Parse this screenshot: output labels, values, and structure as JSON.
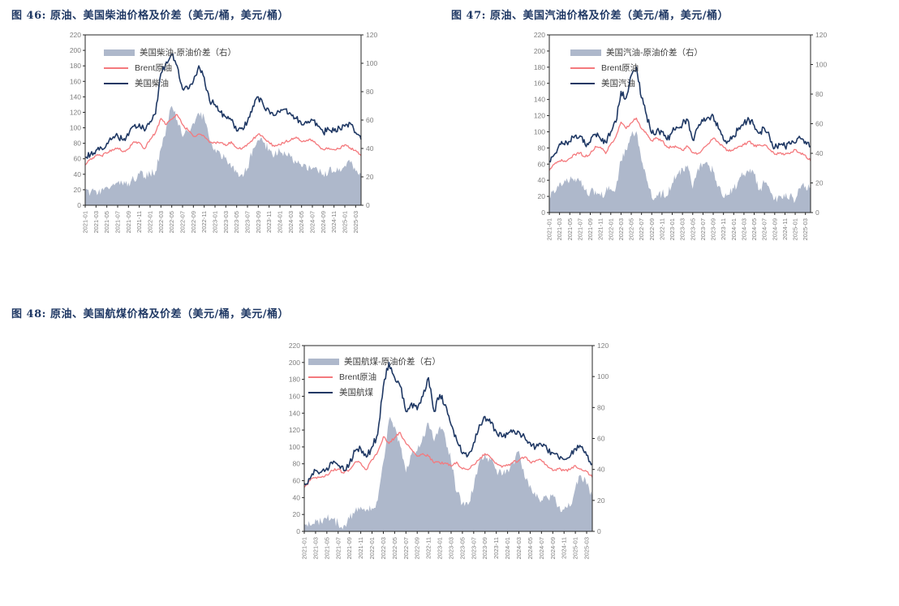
{
  "page": {
    "background": "#ffffff"
  },
  "colors": {
    "title": "#1f3864",
    "navy_line": "#1f3864",
    "pink_line": "#f4797d",
    "spread_fill": "#aeb8cb",
    "axis_text": "#7f7f7f",
    "plot_border": "#262626",
    "legend_text": "#404040"
  },
  "chart_data": [
    {
      "type": "line+area",
      "title": "图 46:  原油、美国柴油价格及价差（美元/桶，美元/桶）",
      "legend": [
        "美国柴油-原油价差（右）",
        "Brent原油",
        "美国柴油"
      ],
      "left_axis": {
        "min": 0,
        "max": 220,
        "step": 20,
        "ticks": [
          0,
          20,
          40,
          60,
          80,
          100,
          120,
          140,
          160,
          180,
          200,
          220
        ]
      },
      "right_axis": {
        "min": 0,
        "max": 120,
        "step": 20,
        "ticks": [
          0,
          20,
          40,
          60,
          80,
          100,
          120
        ]
      },
      "x_tick_labels": [
        "2021-01",
        "2021-03",
        "2021-05",
        "2021-07",
        "2021-09",
        "2021-11",
        "2022-01",
        "2022-03",
        "2022-05",
        "2022-07",
        "2022-09",
        "2022-11",
        "2023-01",
        "2023-03",
        "2023-05",
        "2023-07",
        "2023-09",
        "2023-11",
        "2024-01",
        "2024-03",
        "2024-05",
        "2024-07",
        "2024-09",
        "2024-11",
        "2025-01",
        "2025-03"
      ],
      "months": [
        "2021-01",
        "2021-02",
        "2021-03",
        "2021-04",
        "2021-05",
        "2021-06",
        "2021-07",
        "2021-08",
        "2021-09",
        "2021-10",
        "2021-11",
        "2021-12",
        "2022-01",
        "2022-02",
        "2022-03",
        "2022-04",
        "2022-05",
        "2022-06",
        "2022-07",
        "2022-08",
        "2022-09",
        "2022-10",
        "2022-11",
        "2022-12",
        "2023-01",
        "2023-02",
        "2023-03",
        "2023-04",
        "2023-05",
        "2023-06",
        "2023-07",
        "2023-08",
        "2023-09",
        "2023-10",
        "2023-11",
        "2023-12",
        "2024-01",
        "2024-02",
        "2024-03",
        "2024-04",
        "2024-05",
        "2024-06",
        "2024-07",
        "2024-08",
        "2024-09",
        "2024-10",
        "2024-11",
        "2024-12",
        "2025-01",
        "2025-02",
        "2025-03",
        "2025-04"
      ],
      "series": [
        {
          "name": "美国柴油-原油价差（右）",
          "axis": "right",
          "style": "area",
          "values": [
            10,
            9,
            10,
            11,
            13,
            14,
            16,
            14,
            16,
            18,
            22,
            20,
            22,
            24,
            40,
            55,
            70,
            60,
            48,
            52,
            58,
            65,
            62,
            46,
            40,
            36,
            34,
            26,
            23,
            22,
            26,
            40,
            46,
            44,
            40,
            35,
            38,
            36,
            34,
            30,
            27,
            25,
            26,
            24,
            22,
            24,
            24,
            26,
            28,
            30,
            24,
            22
          ]
        },
        {
          "name": "Brent原油",
          "axis": "left",
          "style": "line-pink",
          "values": [
            52,
            60,
            64,
            64,
            67,
            72,
            74,
            69,
            73,
            82,
            81,
            73,
            85,
            94,
            112,
            104,
            111,
            117,
            104,
            97,
            89,
            92,
            89,
            81,
            81,
            81,
            77,
            82,
            74,
            73,
            79,
            85,
            92,
            87,
            81,
            76,
            78,
            82,
            84,
            88,
            82,
            84,
            84,
            78,
            72,
            74,
            72,
            73,
            78,
            74,
            71,
            64
          ]
        },
        {
          "name": "美国柴油",
          "axis": "left",
          "style": "line-navy",
          "values": [
            62,
            66,
            71,
            74,
            80,
            86,
            90,
            84,
            90,
            102,
            105,
            96,
            108,
            118,
            170,
            185,
            195,
            180,
            150,
            150,
            160,
            180,
            165,
            135,
            130,
            120,
            114,
            110,
            96,
            100,
            108,
            128,
            140,
            128,
            122,
            116,
            120,
            124,
            118,
            112,
            104,
            106,
            110,
            102,
            94,
            98,
            96,
            100,
            102,
            106,
            94,
            85
          ]
        }
      ]
    },
    {
      "type": "line+area",
      "title": "图 47:  原油、美国汽油价格及价差（美元/桶，美元/桶）",
      "legend": [
        "美国汽油-原油价差（右）",
        "Brent原油",
        "美国汽油"
      ],
      "left_axis": {
        "min": 0,
        "max": 220,
        "step": 20,
        "ticks": [
          0,
          20,
          40,
          60,
          80,
          100,
          120,
          140,
          160,
          180,
          200,
          220
        ]
      },
      "right_axis": {
        "min": 0,
        "max": 120,
        "step": 20,
        "ticks": [
          0,
          20,
          40,
          60,
          80,
          100,
          120
        ]
      },
      "x_tick_labels": [
        "2021-01",
        "2021-03",
        "2021-05",
        "2021-07",
        "2021-09",
        "2021-11",
        "2022-01",
        "2022-03",
        "2022-05",
        "2022-07",
        "2022-09",
        "2022-11",
        "2023-01",
        "2023-03",
        "2023-05",
        "2023-07",
        "2023-09",
        "2023-11",
        "2024-01",
        "2024-03",
        "2024-05",
        "2024-07",
        "2024-09",
        "2024-11",
        "2025-01",
        "2025-03"
      ],
      "months": [
        "2021-01",
        "2021-02",
        "2021-03",
        "2021-04",
        "2021-05",
        "2021-06",
        "2021-07",
        "2021-08",
        "2021-09",
        "2021-10",
        "2021-11",
        "2021-12",
        "2022-01",
        "2022-02",
        "2022-03",
        "2022-04",
        "2022-05",
        "2022-06",
        "2022-07",
        "2022-08",
        "2022-09",
        "2022-10",
        "2022-11",
        "2022-12",
        "2023-01",
        "2023-02",
        "2023-03",
        "2023-04",
        "2023-05",
        "2023-06",
        "2023-07",
        "2023-08",
        "2023-09",
        "2023-10",
        "2023-11",
        "2023-12",
        "2024-01",
        "2024-02",
        "2024-03",
        "2024-04",
        "2024-05",
        "2024-06",
        "2024-07",
        "2024-08",
        "2024-09",
        "2024-10",
        "2024-11",
        "2024-12",
        "2025-01",
        "2025-02",
        "2025-03",
        "2025-04"
      ],
      "series": [
        {
          "name": "美国汽油-原油价差（右）",
          "axis": "right",
          "style": "area",
          "values": [
            11,
            13,
            20,
            22,
            22,
            23,
            21,
            15,
            14,
            15,
            11,
            14,
            16,
            17,
            35,
            42,
            52,
            55,
            35,
            22,
            10,
            12,
            13,
            11,
            20,
            26,
            30,
            32,
            16,
            30,
            33,
            32,
            28,
            18,
            10,
            12,
            16,
            22,
            26,
            27,
            26,
            15,
            20,
            16,
            9,
            11,
            10,
            12,
            8,
            16,
            18,
            17
          ]
        },
        {
          "name": "Brent原油",
          "axis": "left",
          "style": "line-pink",
          "values": [
            52,
            60,
            64,
            64,
            67,
            72,
            74,
            69,
            73,
            82,
            81,
            73,
            85,
            94,
            112,
            104,
            111,
            117,
            104,
            97,
            89,
            92,
            89,
            81,
            81,
            81,
            77,
            82,
            74,
            73,
            79,
            85,
            92,
            87,
            81,
            76,
            78,
            82,
            84,
            88,
            82,
            84,
            84,
            78,
            72,
            74,
            72,
            73,
            78,
            74,
            71,
            64
          ]
        },
        {
          "name": "美国汽油",
          "axis": "left",
          "style": "line-navy",
          "values": [
            63,
            72,
            85,
            84,
            88,
            95,
            95,
            84,
            87,
            97,
            91,
            87,
            100,
            112,
            150,
            142,
            170,
            180,
            142,
            120,
            98,
            102,
            100,
            90,
            100,
            105,
            110,
            115,
            90,
            105,
            113,
            118,
            120,
            104,
            90,
            88,
            95,
            105,
            111,
            115,
            108,
            98,
            104,
            94,
            80,
            84,
            82,
            85,
            86,
            92,
            88,
            82
          ]
        }
      ]
    },
    {
      "type": "line+area",
      "title": "图 48:  原油、美国航煤价格及价差（美元/桶，美元/桶）",
      "legend": [
        "美国航煤-原油价差（右）",
        "Brent原油",
        "美国航煤"
      ],
      "left_axis": {
        "min": 0,
        "max": 220,
        "step": 20,
        "ticks": [
          0,
          20,
          40,
          60,
          80,
          100,
          120,
          140,
          160,
          180,
          200,
          220
        ]
      },
      "right_axis": {
        "min": 0,
        "max": 120,
        "step": 20,
        "ticks": [
          0,
          20,
          40,
          60,
          80,
          100,
          120
        ]
      },
      "x_tick_labels": [
        "2021-01",
        "2021-03",
        "2021-05",
        "2021-07",
        "2021-09",
        "2021-11",
        "2022-01",
        "2022-03",
        "2022-05",
        "2022-07",
        "2022-09",
        "2022-11",
        "2023-01",
        "2023-03",
        "2023-05",
        "2023-07",
        "2023-09",
        "2023-11",
        "2024-01",
        "2024-03",
        "2024-05",
        "2024-07",
        "2024-09",
        "2024-11",
        "2025-01",
        "2025-03"
      ],
      "months": [
        "2021-01",
        "2021-02",
        "2021-03",
        "2021-04",
        "2021-05",
        "2021-06",
        "2021-07",
        "2021-08",
        "2021-09",
        "2021-10",
        "2021-11",
        "2021-12",
        "2022-01",
        "2022-02",
        "2022-03",
        "2022-04",
        "2022-05",
        "2022-06",
        "2022-07",
        "2022-08",
        "2022-09",
        "2022-10",
        "2022-11",
        "2022-12",
        "2023-01",
        "2023-02",
        "2023-03",
        "2023-04",
        "2023-05",
        "2023-06",
        "2023-07",
        "2023-08",
        "2023-09",
        "2023-10",
        "2023-11",
        "2023-12",
        "2024-01",
        "2024-02",
        "2024-03",
        "2024-04",
        "2024-05",
        "2024-06",
        "2024-07",
        "2024-08",
        "2024-09",
        "2024-10",
        "2024-11",
        "2024-12",
        "2025-01",
        "2025-02",
        "2025-03",
        "2025-04"
      ],
      "series": [
        {
          "name": "美国航煤-原油价差（右）",
          "axis": "right",
          "style": "area",
          "values": [
            5,
            4,
            8,
            6,
            8,
            8,
            5,
            4,
            8,
            13,
            16,
            14,
            15,
            20,
            45,
            72,
            68,
            55,
            38,
            50,
            52,
            62,
            70,
            58,
            68,
            60,
            45,
            25,
            18,
            17,
            28,
            45,
            50,
            46,
            40,
            36,
            40,
            45,
            52,
            35,
            30,
            22,
            20,
            22,
            24,
            16,
            14,
            16,
            28,
            36,
            30,
            22
          ]
        },
        {
          "name": "Brent原油",
          "axis": "left",
          "style": "line-pink",
          "values": [
            52,
            60,
            64,
            64,
            67,
            72,
            74,
            69,
            73,
            82,
            81,
            73,
            85,
            94,
            112,
            104,
            111,
            117,
            104,
            97,
            89,
            92,
            89,
            81,
            81,
            81,
            77,
            82,
            74,
            73,
            79,
            85,
            92,
            87,
            81,
            76,
            78,
            82,
            84,
            88,
            82,
            84,
            84,
            78,
            72,
            74,
            72,
            73,
            78,
            74,
            71,
            64
          ]
        },
        {
          "name": "美国航煤",
          "axis": "left",
          "style": "line-navy",
          "values": [
            57,
            62,
            72,
            70,
            75,
            80,
            78,
            72,
            80,
            95,
            98,
            88,
            100,
            115,
            172,
            200,
            182,
            172,
            142,
            152,
            144,
            160,
            182,
            142,
            162,
            150,
            126,
            108,
            92,
            90,
            105,
            126,
            136,
            128,
            118,
            112,
            115,
            120,
            118,
            112,
            105,
            100,
            102,
            97,
            93,
            88,
            85,
            88,
            98,
            100,
            90,
            80
          ]
        }
      ]
    }
  ]
}
